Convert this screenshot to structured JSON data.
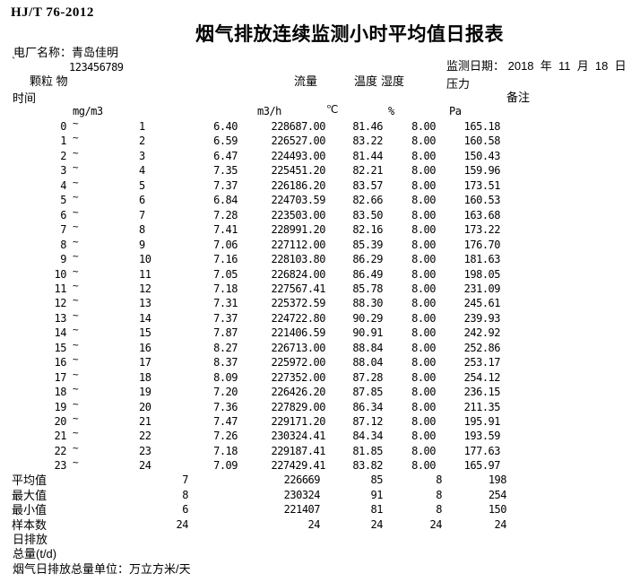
{
  "meta": {
    "standard": "HJ/T 76-2012",
    "title": "烟气排放连续监测小时平均值日报表",
    "plant_line": "电厂名称：青岛佳明",
    "plant_mark": "`",
    "plant_code": "123456789",
    "date_line": "监测日期： 2018  年  11  月  18  日"
  },
  "columns": {
    "time": "时间",
    "particulate": "颗粒 物",
    "flow": "流量",
    "temperature": "温度",
    "humidity": "湿度",
    "pressure": "压力",
    "remark": "备注",
    "range_separator": "~",
    "units": {
      "particulate": "mg/m3",
      "flow": "m3/h",
      "temperature": "℃",
      "humidity": "%",
      "pressure": "Pa"
    }
  },
  "rows": [
    {
      "from": "0",
      "to": "1",
      "pm": "6.40",
      "flow": "228687.00",
      "temp": "81.46",
      "hum": "8.00",
      "press": "165.18"
    },
    {
      "from": "1",
      "to": "2",
      "pm": "6.59",
      "flow": "226527.00",
      "temp": "83.22",
      "hum": "8.00",
      "press": "160.58"
    },
    {
      "from": "2",
      "to": "3",
      "pm": "6.47",
      "flow": "224493.00",
      "temp": "81.44",
      "hum": "8.00",
      "press": "150.43"
    },
    {
      "from": "3",
      "to": "4",
      "pm": "7.35",
      "flow": "225451.20",
      "temp": "82.21",
      "hum": "8.00",
      "press": "159.96"
    },
    {
      "from": "4",
      "to": "5",
      "pm": "7.37",
      "flow": "226186.20",
      "temp": "83.57",
      "hum": "8.00",
      "press": "173.51"
    },
    {
      "from": "5",
      "to": "6",
      "pm": "6.84",
      "flow": "224703.59",
      "temp": "82.66",
      "hum": "8.00",
      "press": "160.53"
    },
    {
      "from": "6",
      "to": "7",
      "pm": "7.28",
      "flow": "223503.00",
      "temp": "83.50",
      "hum": "8.00",
      "press": "163.68"
    },
    {
      "from": "7",
      "to": "8",
      "pm": "7.41",
      "flow": "228991.20",
      "temp": "82.16",
      "hum": "8.00",
      "press": "173.22"
    },
    {
      "from": "8",
      "to": "9",
      "pm": "7.06",
      "flow": "227112.00",
      "temp": "85.39",
      "hum": "8.00",
      "press": "176.70"
    },
    {
      "from": "9",
      "to": "10",
      "pm": "7.16",
      "flow": "228103.80",
      "temp": "86.29",
      "hum": "8.00",
      "press": "181.63"
    },
    {
      "from": "10",
      "to": "11",
      "pm": "7.05",
      "flow": "226824.00",
      "temp": "86.49",
      "hum": "8.00",
      "press": "198.05"
    },
    {
      "from": "11",
      "to": "12",
      "pm": "7.18",
      "flow": "227567.41",
      "temp": "85.78",
      "hum": "8.00",
      "press": "231.09"
    },
    {
      "from": "12",
      "to": "13",
      "pm": "7.31",
      "flow": "225372.59",
      "temp": "88.30",
      "hum": "8.00",
      "press": "245.61"
    },
    {
      "from": "13",
      "to": "14",
      "pm": "7.37",
      "flow": "224722.80",
      "temp": "90.29",
      "hum": "8.00",
      "press": "239.93"
    },
    {
      "from": "14",
      "to": "15",
      "pm": "7.87",
      "flow": "221406.59",
      "temp": "90.91",
      "hum": "8.00",
      "press": "242.92"
    },
    {
      "from": "15",
      "to": "16",
      "pm": "8.27",
      "flow": "226713.00",
      "temp": "88.84",
      "hum": "8.00",
      "press": "252.86"
    },
    {
      "from": "16",
      "to": "17",
      "pm": "8.37",
      "flow": "225972.00",
      "temp": "88.04",
      "hum": "8.00",
      "press": "253.17"
    },
    {
      "from": "17",
      "to": "18",
      "pm": "8.09",
      "flow": "227352.00",
      "temp": "87.28",
      "hum": "8.00",
      "press": "254.12"
    },
    {
      "from": "18",
      "to": "19",
      "pm": "7.20",
      "flow": "226426.20",
      "temp": "87.85",
      "hum": "8.00",
      "press": "236.15"
    },
    {
      "from": "19",
      "to": "20",
      "pm": "7.36",
      "flow": "227829.00",
      "temp": "86.34",
      "hum": "8.00",
      "press": "211.35"
    },
    {
      "from": "20",
      "to": "21",
      "pm": "7.47",
      "flow": "229171.20",
      "temp": "87.12",
      "hum": "8.00",
      "press": "195.91"
    },
    {
      "from": "21",
      "to": "22",
      "pm": "7.26",
      "flow": "230324.41",
      "temp": "84.34",
      "hum": "8.00",
      "press": "193.59"
    },
    {
      "from": "22",
      "to": "23",
      "pm": "7.18",
      "flow": "229187.41",
      "temp": "81.85",
      "hum": "8.00",
      "press": "177.63"
    },
    {
      "from": "23",
      "to": "24",
      "pm": "7.09",
      "flow": "227429.41",
      "temp": "83.82",
      "hum": "8.00",
      "press": "165.97"
    }
  ],
  "summary": [
    {
      "label": "平均值",
      "pm": "7",
      "flow": "226669",
      "temp": "85",
      "hum": "8",
      "press": "198"
    },
    {
      "label": "最大值",
      "pm": "8",
      "flow": "230324",
      "temp": "91",
      "hum": "8",
      "press": "254"
    },
    {
      "label": "最小值",
      "pm": "6",
      "flow": "221407",
      "temp": "81",
      "hum": "8",
      "press": "150"
    },
    {
      "label": "样本数",
      "pm": "24",
      "flow": "24",
      "temp": "24",
      "hum": "24",
      "press": "24"
    }
  ],
  "footer": {
    "daily_emission_line1": "日排放",
    "daily_emission_line2": "总量(t/d)",
    "unit_note": "烟气日排放总量单位：万立方米/天"
  }
}
